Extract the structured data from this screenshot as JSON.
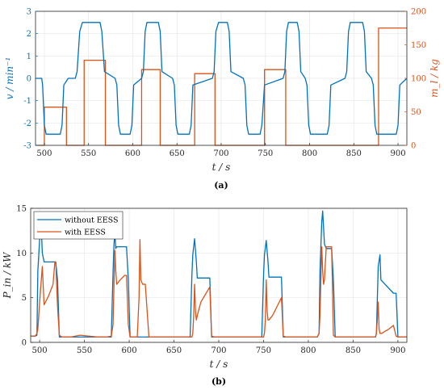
{
  "chart_data": [
    {
      "type": "line",
      "panel_label": "(a)",
      "xlabel": "t / s",
      "ylabel_left": "v / min⁻¹",
      "ylabel_right": "m_l / kg",
      "xlim": [
        490,
        910
      ],
      "ylim_left": [
        -3,
        3
      ],
      "ylim_right": [
        0,
        200
      ],
      "xticks": [
        500,
        550,
        600,
        650,
        700,
        750,
        800,
        850,
        900
      ],
      "yticks_left": [
        -3,
        -2,
        -1,
        0,
        1,
        2,
        3
      ],
      "yticks_right": [
        0,
        50,
        100,
        150,
        200
      ],
      "grid": true,
      "colors": {
        "speed": "#0072BD",
        "mass": "#D95319"
      },
      "series": [
        {
          "axis": "left",
          "x": [
            490,
            497,
            498,
            500,
            502,
            518,
            520,
            522,
            527,
            530,
            535,
            537,
            540,
            543,
            546,
            548,
            563,
            565,
            568,
            580,
            582,
            584,
            586,
            597,
            599,
            601,
            610,
            612,
            614,
            616,
            629,
            631,
            633,
            645,
            647,
            649,
            651,
            664,
            666,
            668,
            690,
            692,
            694,
            697,
            707,
            709,
            711,
            725,
            727,
            729,
            731,
            744,
            746,
            749,
            770,
            772,
            774,
            776,
            786,
            788,
            790,
            795,
            797,
            799,
            801,
            820,
            822,
            824,
            840,
            842,
            844,
            846,
            860,
            862,
            864,
            870,
            872,
            874,
            876,
            898,
            900,
            902,
            910
          ],
          "y": [
            0,
            0,
            -0.3,
            -2.1,
            -2.5,
            -2.5,
            -2.1,
            -0.3,
            0,
            0,
            0,
            0.3,
            2.1,
            2.5,
            2.5,
            2.5,
            2.5,
            2.1,
            0.3,
            0,
            -0.3,
            -2.1,
            -2.5,
            -2.5,
            -2.1,
            -0.3,
            0,
            0.3,
            2.1,
            2.5,
            2.5,
            2.1,
            0.3,
            0,
            -0.3,
            -2.1,
            -2.5,
            -2.5,
            -2.1,
            -0.3,
            0,
            0.3,
            2.1,
            2.5,
            2.5,
            2.1,
            0.3,
            0,
            -0.3,
            -2.1,
            -2.5,
            -2.5,
            -2.1,
            -0.3,
            0,
            0.3,
            2.1,
            2.5,
            2.5,
            2.1,
            0.3,
            0,
            -0.3,
            -2.1,
            -2.5,
            -2.5,
            -2.1,
            -0.3,
            0,
            0.3,
            2.1,
            2.5,
            2.5,
            2.1,
            0.3,
            0,
            -0.3,
            -2.1,
            -2.5,
            -2.5,
            -2.1,
            -0.3,
            0
          ]
        },
        {
          "axis": "right",
          "x": [
            490,
            500,
            500,
            525,
            525,
            545,
            545,
            569,
            569,
            610,
            610,
            631,
            631,
            670,
            670,
            693,
            693,
            749,
            749,
            773,
            773,
            878,
            878,
            910
          ],
          "y": [
            0,
            0,
            57,
            57,
            0,
            0,
            127,
            127,
            0,
            0,
            113,
            113,
            0,
            0,
            107,
            107,
            0,
            0,
            113,
            113,
            0,
            0,
            175,
            175
          ]
        }
      ]
    },
    {
      "type": "line",
      "panel_label": "(b)",
      "xlabel": "t / s",
      "ylabel": "P_in / kW",
      "xlim": [
        490,
        910
      ],
      "ylim": [
        0,
        15
      ],
      "xticks": [
        500,
        550,
        600,
        650,
        700,
        750,
        800,
        850,
        900
      ],
      "yticks": [
        0,
        5,
        10,
        15
      ],
      "grid": true,
      "legend_position": "top-left",
      "colors": {
        "without": "#0072BD",
        "with": "#D95319"
      },
      "series": [
        {
          "name": "without EESS",
          "x": [
            490,
            495,
            497,
            498,
            500,
            502,
            503,
            505,
            518,
            520,
            522,
            525,
            535,
            545,
            575,
            580,
            582,
            583,
            584,
            585,
            586,
            597,
            599,
            601,
            605,
            620,
            645,
            665,
            668,
            670,
            671,
            673,
            675,
            676,
            678,
            690,
            692,
            695,
            720,
            735,
            745,
            748,
            750,
            751,
            753,
            755,
            756,
            758,
            770,
            772,
            775,
            790,
            805,
            810,
            812,
            813,
            815,
            816,
            818,
            820,
            826,
            828,
            830,
            835,
            845,
            855,
            865,
            870,
            875,
            876,
            878,
            880,
            881,
            895,
            896,
            898,
            900,
            905,
            910
          ],
          "y": [
            0.7,
            0.7,
            0.8,
            8,
            11.5,
            12.4,
            10,
            9,
            9,
            7,
            0.6,
            0.6,
            0.6,
            0.6,
            0.6,
            0.6,
            8,
            11,
            12.2,
            10.5,
            10.7,
            10.7,
            7,
            0.6,
            0.6,
            0.6,
            0.6,
            0.6,
            0.6,
            7.5,
            9.8,
            11.6,
            9,
            7.2,
            7.2,
            7.2,
            0.6,
            0.6,
            0.6,
            0.6,
            0.6,
            0.6,
            7.5,
            9.8,
            11.4,
            9,
            7.3,
            7.3,
            7.3,
            0.6,
            0.6,
            0.6,
            0.6,
            0.6,
            1,
            8,
            13.5,
            14.7,
            11,
            10.5,
            10.5,
            7,
            0.6,
            0.6,
            0.6,
            0.6,
            0.6,
            0.6,
            0.6,
            1,
            8.5,
            9.8,
            7,
            5.5,
            5.5,
            5.5,
            0.6,
            0.6,
            0.6
          ]
        },
        {
          "name": "with EESS",
          "x": [
            490,
            495,
            497,
            498,
            500,
            503,
            505,
            508,
            510,
            515,
            517,
            518,
            520,
            522,
            525,
            535,
            545,
            565,
            575,
            580,
            582,
            583,
            584,
            585,
            586,
            590,
            595,
            597,
            599,
            601,
            605,
            609,
            611,
            612,
            613,
            615,
            618,
            622,
            628,
            645,
            660,
            668,
            670,
            671,
            672,
            673,
            674,
            675,
            676,
            680,
            690,
            692,
            695,
            720,
            735,
            745,
            748,
            750,
            751,
            752,
            753,
            754,
            755,
            756,
            760,
            765,
            770,
            772,
            775,
            790,
            805,
            810,
            812,
            813,
            814,
            815,
            816,
            817,
            818,
            820,
            826,
            828,
            830,
            835,
            845,
            855,
            865,
            870,
            875,
            876,
            877,
            878,
            879,
            880,
            881,
            882,
            885,
            890,
            895,
            898,
            900,
            905,
            910
          ],
          "y": [
            0.7,
            0.7,
            1,
            1.5,
            4.5,
            8.5,
            4.2,
            4.8,
            5.2,
            6.5,
            9,
            9,
            4,
            0.8,
            0.6,
            0.6,
            0.8,
            0.6,
            0.6,
            0.7,
            2,
            6.5,
            10.3,
            8,
            6.5,
            7,
            7.5,
            7.5,
            2,
            0.6,
            0.6,
            0.6,
            5,
            11.5,
            7,
            6.5,
            6.5,
            0.6,
            0.6,
            0.6,
            0.6,
            0.6,
            0.6,
            1,
            3,
            6.5,
            3.5,
            2.5,
            3,
            4.5,
            6.2,
            0.7,
            0.6,
            0.6,
            0.6,
            0.6,
            0.6,
            0.6,
            1,
            2.5,
            7,
            3.5,
            2.5,
            2.5,
            3,
            4,
            5,
            0.7,
            0.6,
            0.6,
            0.6,
            0.6,
            1,
            3,
            7,
            10.7,
            8,
            6.5,
            7,
            10.7,
            10.7,
            0.8,
            0.6,
            0.6,
            0.6,
            0.6,
            0.6,
            0.6,
            0.6,
            1,
            2.5,
            4.5,
            1.5,
            1,
            1,
            1,
            1.2,
            1.5,
            1.9,
            0.7,
            0.6,
            0.6,
            0.6
          ]
        }
      ]
    }
  ]
}
